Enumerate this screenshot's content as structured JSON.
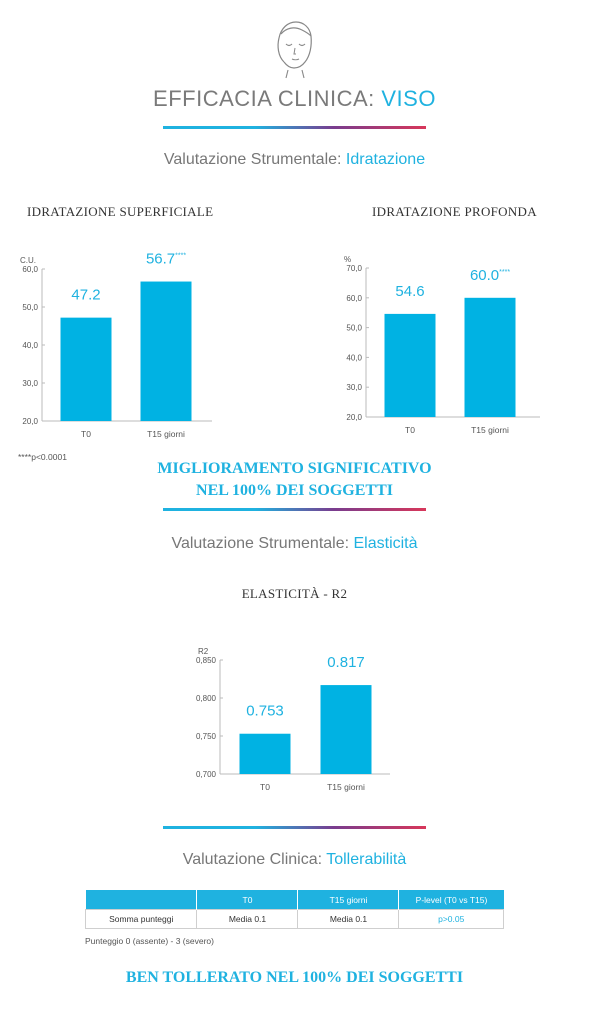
{
  "header": {
    "icon": "face-icon",
    "title_main": "EFFICACIA CLINICA: ",
    "title_accent": "VISO"
  },
  "colors": {
    "accent": "#1fb2e0",
    "gradient_mid": "#7a3c8e",
    "gradient_end": "#d8375a",
    "bar": "#00b2e3"
  },
  "section_hydration": {
    "label": "Valutazione Strumentale: ",
    "accent": "Idratazione"
  },
  "section_elasticity": {
    "label": "Valutazione Strumentale: ",
    "accent": "Elasticità"
  },
  "section_tolerability": {
    "label": "Valutazione Clinica: ",
    "accent": "Tollerabilità"
  },
  "chart_data": [
    {
      "type": "bar",
      "title": "IDRATAZIONE SUPERFICIALE",
      "ylabel": "C.U.",
      "categories": [
        "T0",
        "T15 giorni"
      ],
      "values": [
        47.2,
        56.7
      ],
      "value_labels": [
        "47.2",
        "56.7"
      ],
      "significance": [
        "",
        "****"
      ],
      "ylim": [
        20,
        60
      ],
      "yticks": [
        20,
        30,
        40,
        50,
        60
      ],
      "ytick_labels": [
        "20,0",
        "30,0",
        "40,0",
        "50,0",
        "60,0"
      ],
      "legend": "none",
      "grid": false
    },
    {
      "type": "bar",
      "title": "IDRATAZIONE PROFONDA",
      "ylabel": "%",
      "categories": [
        "T0",
        "T15 giorni"
      ],
      "values": [
        54.6,
        60.0
      ],
      "value_labels": [
        "54.6",
        "60.0"
      ],
      "significance": [
        "",
        "****"
      ],
      "ylim": [
        20,
        70
      ],
      "yticks": [
        20,
        30,
        40,
        50,
        60,
        70
      ],
      "ytick_labels": [
        "20,0",
        "30,0",
        "40,0",
        "50,0",
        "60,0",
        "70,0"
      ],
      "legend": "none",
      "grid": false
    },
    {
      "type": "bar",
      "title": "ELASTICITÀ - R2",
      "ylabel": "R2",
      "categories": [
        "T0",
        "T15 giorni"
      ],
      "values": [
        0.753,
        0.817
      ],
      "value_labels": [
        "0.753",
        "0.817"
      ],
      "significance": [
        "",
        ""
      ],
      "ylim": [
        0.7,
        0.85
      ],
      "yticks": [
        0.7,
        0.75,
        0.8,
        0.85
      ],
      "ytick_labels": [
        "0,700",
        "0,750",
        "0,800",
        "0,850"
      ],
      "legend": "none",
      "grid": false
    }
  ],
  "footnote_significance": "****p<0.0001",
  "highlight_hydration": {
    "line1": "MIGLIORAMENTO SIGNIFICATIVO",
    "line2": "NEL 100% DEI SOGGETTI"
  },
  "tolerability_table": {
    "headers": [
      "",
      "T0",
      "T15 giorni",
      "P-level (T0 vs T15)"
    ],
    "rows": [
      [
        "Somma punteggi",
        "Media 0.1",
        "Media 0.1",
        "p>0.05"
      ]
    ]
  },
  "score_note": "Punteggio 0 (assente) - 3 (severo)",
  "highlight_tolerability": "BEN TOLLERATO NEL 100% DEI SOGGETTI"
}
